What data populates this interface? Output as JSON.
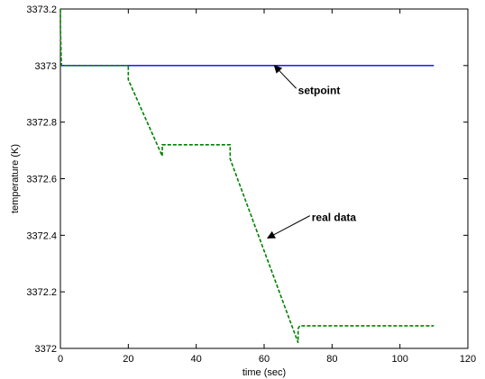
{
  "chart_data": {
    "type": "line",
    "title": "",
    "xlabel": "time (sec)",
    "ylabel": "temperature (K)",
    "xlim": [
      0,
      120
    ],
    "ylim": [
      3372,
      3373.2
    ],
    "x_ticks": [
      0,
      20,
      40,
      60,
      80,
      100,
      120
    ],
    "y_ticks": [
      3372,
      3372.2,
      3372.4,
      3372.6,
      3372.8,
      3373,
      3373.2
    ],
    "x_tick_labels": [
      "0",
      "20",
      "40",
      "60",
      "80",
      "100",
      "120"
    ],
    "y_tick_labels": [
      "3372",
      "3372.2",
      "3372.4",
      "3372.6",
      "3372.8",
      "3373",
      "3373.2"
    ],
    "grid": false,
    "series": [
      {
        "name": "setpoint",
        "color": "#0000ff",
        "style": "solid",
        "x": [
          0,
          110
        ],
        "y": [
          3373,
          3373
        ]
      },
      {
        "name": "real data",
        "color": "#008000",
        "style": "dashed",
        "x": [
          0,
          0,
          0.3,
          20,
          20,
          30,
          30,
          30.5,
          50,
          50,
          70,
          70,
          70.5,
          110
        ],
        "y": [
          3373.2,
          3373.14,
          3373,
          3373,
          3372.95,
          3372.68,
          3372.72,
          3372.72,
          3372.72,
          3372.67,
          3372.02,
          3372.07,
          3372.08,
          3372.08
        ]
      }
    ],
    "annotations": [
      {
        "text": "setpoint",
        "label_at": [
          70,
          3372.9
        ],
        "arrow_to": [
          63,
          3373
        ]
      },
      {
        "text": "real data",
        "label_at": [
          74,
          3372.45
        ],
        "arrow_to": [
          61,
          3372.39
        ]
      }
    ]
  }
}
